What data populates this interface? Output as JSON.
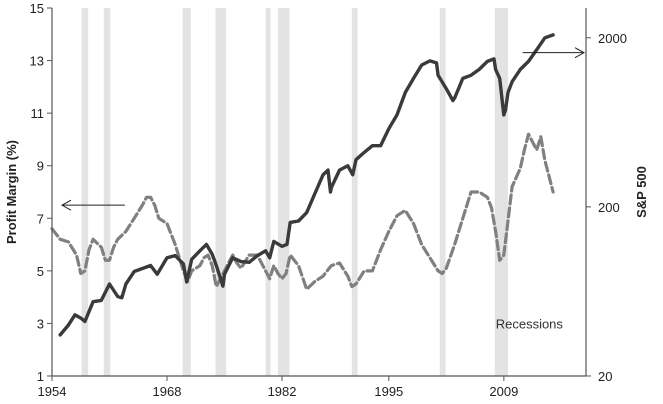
{
  "chart_data": {
    "type": "line",
    "title": "",
    "xlabel": "",
    "ylabel_left": "Profit Margin (%)",
    "ylabel_right": "S&P 500",
    "x_ticks": [
      "1954",
      "1968",
      "1982",
      "1995",
      "2009"
    ],
    "y_left_ticks": [
      "1",
      "3",
      "5",
      "7",
      "9",
      "11",
      "13",
      "15"
    ],
    "y_right_ticks": [
      "20",
      "200",
      "2000"
    ],
    "xlim": [
      1954,
      2019
    ],
    "ylim_left": [
      1,
      15
    ],
    "ylim_right": [
      20,
      3000
    ],
    "y_right_scale": "log",
    "grid": false,
    "annotations": [
      {
        "text": "Recessions",
        "x": 2014,
        "y_left": 3.0
      },
      {
        "type": "arrow",
        "points_to": "left-axis",
        "near_year": 1958,
        "y_left": 7.5
      },
      {
        "type": "arrow",
        "points_to": "right-axis",
        "near_year": 2013,
        "y_left": 13.3
      }
    ],
    "recessions": [
      [
        1957.6,
        1958.4
      ],
      [
        1960.3,
        1961.1
      ],
      [
        1969.9,
        1970.9
      ],
      [
        1973.9,
        1975.2
      ],
      [
        1980.0,
        1980.6
      ],
      [
        1981.5,
        1982.9
      ],
      [
        1990.5,
        1991.2
      ],
      [
        2001.2,
        2001.9
      ],
      [
        2007.9,
        2009.5
      ]
    ],
    "series": [
      {
        "name": "",
        "axis": "left",
        "style": "dashed",
        "color": "#808080",
        "x": [
          1954,
          1955,
          1956,
          1957,
          1957.5,
          1958,
          1958.5,
          1959,
          1960,
          1960.5,
          1961,
          1961.5,
          1962,
          1963,
          1964,
          1965,
          1965.5,
          1966,
          1966.5,
          1967,
          1968,
          1969,
          1969.5,
          1970,
          1970.5,
          1971,
          1972,
          1972.5,
          1973,
          1973.5,
          1974,
          1975,
          1976,
          1976.5,
          1977,
          1978,
          1979,
          1980,
          1980.5,
          1981,
          1981.5,
          1982,
          1982.5,
          1983,
          1984,
          1985,
          1986,
          1987,
          1988,
          1989,
          1990,
          1990.5,
          1991,
          1992,
          1993,
          1994,
          1995,
          1996,
          1997,
          1998,
          1999,
          2000,
          2001,
          2001.5,
          2002,
          2003,
          2004,
          2005,
          2006,
          2007,
          2007.5,
          2008,
          2008.5,
          2009,
          2009.5,
          2010,
          2011,
          2011.5,
          2012,
          2013,
          2013.5,
          2014,
          2014.5,
          2015
        ],
        "values": [
          6.6,
          6.2,
          6.1,
          5.6,
          4.9,
          5.0,
          5.8,
          6.2,
          5.9,
          5.4,
          5.4,
          5.9,
          6.2,
          6.5,
          7.0,
          7.5,
          7.8,
          7.8,
          7.5,
          7.0,
          6.8,
          6.0,
          5.5,
          5.0,
          4.6,
          5.0,
          5.2,
          5.5,
          5.6,
          5.2,
          4.4,
          5.0,
          5.6,
          5.3,
          5.1,
          5.6,
          5.6,
          5.0,
          4.7,
          5.2,
          4.9,
          4.7,
          4.9,
          5.6,
          5.2,
          4.3,
          4.6,
          4.8,
          5.2,
          5.3,
          4.8,
          4.4,
          4.5,
          5.0,
          5.0,
          5.8,
          6.5,
          7.1,
          7.3,
          6.8,
          6.0,
          5.5,
          5.0,
          4.9,
          5.1,
          6.0,
          7.0,
          8.0,
          8.0,
          7.8,
          7.4,
          6.5,
          5.4,
          5.6,
          6.9,
          8.2,
          8.9,
          9.6,
          10.2,
          9.6,
          10.1,
          9.2,
          8.6,
          8.0
        ]
      },
      {
        "name": "",
        "axis": "right",
        "style": "solid",
        "color": "#3a3a3a",
        "x": [
          1955,
          1956,
          1956.8,
          1957.5,
          1958,
          1959,
          1960,
          1961,
          1962,
          1962.5,
          1963,
          1964,
          1966,
          1966.8,
          1968,
          1969,
          1970,
          1970.4,
          1971,
          1972,
          1972.8,
          1973.5,
          1974,
          1974.8,
          1975,
          1976,
          1977,
          1978,
          1979,
          1980,
          1980.5,
          1981,
          1982,
          1982.6,
          1983,
          1984,
          1985,
          1986,
          1987,
          1987.6,
          1987.9,
          1988,
          1989,
          1990,
          1990.6,
          1991,
          1992,
          1993,
          1994,
          1995,
          1996,
          1997,
          1998,
          1999,
          2000,
          2000.8,
          2001,
          2002,
          2002.8,
          2003,
          2004,
          2005,
          2006,
          2007,
          2007.8,
          2008,
          2008.5,
          2009,
          2009.2,
          2009.5,
          2010,
          2011,
          2012,
          2013,
          2014,
          2015
        ],
        "values": [
          35,
          40,
          46,
          44,
          42,
          55,
          56,
          70,
          59,
          58,
          70,
          83,
          90,
          80,
          100,
          103,
          92,
          72,
          98,
          110,
          120,
          105,
          90,
          68,
          80,
          100,
          95,
          94,
          103,
          110,
          100,
          125,
          117,
          120,
          162,
          165,
          185,
          240,
          310,
          330,
          245,
          260,
          330,
          350,
          310,
          380,
          420,
          460,
          460,
          580,
          700,
          950,
          1150,
          1380,
          1460,
          1420,
          1200,
          1000,
          850,
          880,
          1150,
          1200,
          1300,
          1450,
          1500,
          1300,
          1150,
          700,
          750,
          950,
          1100,
          1300,
          1450,
          1700,
          2000,
          2080
        ]
      }
    ]
  }
}
